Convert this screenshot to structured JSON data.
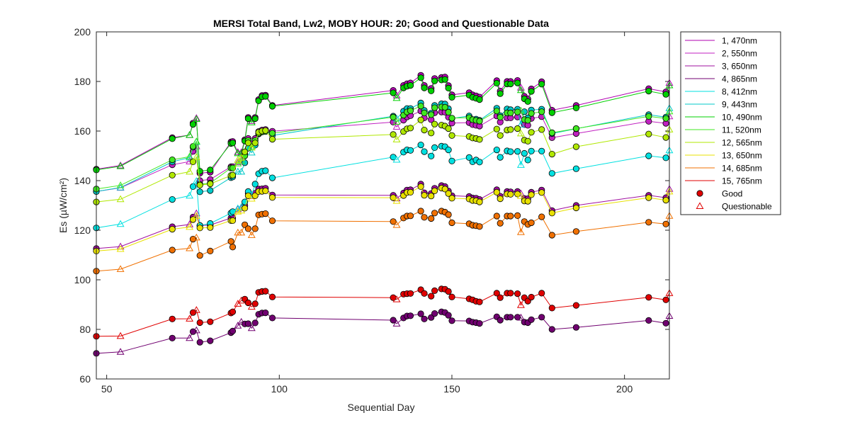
{
  "chart_data": {
    "type": "line",
    "title": "MERSI Total Band,  Lw2, MOBY HOUR: 20;  Good and Questionable Data",
    "xlabel": "Sequential Day",
    "ylabel": "Es (µW/cm²)",
    "xlim": [
      47,
      213
    ],
    "ylim": [
      60,
      200
    ],
    "xticks": [
      50,
      100,
      150,
      200
    ],
    "yticks": [
      60,
      80,
      100,
      120,
      140,
      160,
      180,
      200
    ],
    "grid": false,
    "legend_position": "outside-right",
    "x": [
      47,
      54,
      69,
      74,
      75,
      76,
      77,
      80,
      86,
      86.5,
      88,
      89,
      90,
      91,
      92,
      93,
      94,
      95,
      96,
      98,
      133,
      134,
      136,
      137,
      138,
      141,
      142,
      144,
      145,
      147,
      148,
      149,
      150,
      155,
      156,
      157,
      158,
      163,
      164,
      166,
      167,
      169,
      170,
      171,
      172,
      173,
      176,
      179,
      186,
      207,
      212,
      213
    ],
    "quality": [
      "G",
      "Q",
      "G",
      "Q",
      "G",
      "Q",
      "G",
      "G",
      "G",
      "G",
      "Q",
      "Q",
      "G",
      "G",
      "Q",
      "G",
      "G",
      "G",
      "G",
      "G",
      "G",
      "Q",
      "G",
      "G",
      "G",
      "G",
      "G",
      "G",
      "G",
      "G",
      "G",
      "G",
      "G",
      "G",
      "G",
      "G",
      "G",
      "G",
      "G",
      "G",
      "G",
      "G",
      "Q",
      "G",
      "G",
      "G",
      "G",
      "G",
      "G",
      "G",
      "G",
      "Q"
    ],
    "series": [
      {
        "name": "1, 470nm",
        "color": "#b000b0",
        "values": [
          144.6,
          146.1,
          157.3,
          158.4,
          163.2,
          165.2,
          143.0,
          143.4,
          155.6,
          155.8,
          151.5,
          151.4,
          156.5,
          165.5,
          164.0,
          165.5,
          172.7,
          174.3,
          174.5,
          170.3,
          176.4,
          174.3,
          178.4,
          179.1,
          179.4,
          182.5,
          178.4,
          177.2,
          181.2,
          181.6,
          181.8,
          178.3,
          174.6,
          175.5,
          174.6,
          174.2,
          173.7,
          180.3,
          176.1,
          180.0,
          180.0,
          180.4,
          177.5,
          174.0,
          172.9,
          177.0,
          179.9,
          168.4,
          170.3,
          177.1,
          175.8,
          179.4
        ]
      },
      {
        "name": "2, 550nm",
        "color": "#c020c0",
        "values": [
          135.6,
          137.1,
          146.4,
          147.7,
          151.8,
          153.8,
          140.0,
          140.5,
          145.6,
          145.6,
          147.4,
          148.3,
          150.6,
          157.0,
          154.6,
          157.0,
          159.8,
          160.4,
          160.6,
          159.9,
          163.6,
          161.7,
          164.4,
          165.7,
          166.2,
          168.1,
          165.3,
          164.6,
          167.4,
          167.7,
          167.6,
          165.6,
          163.2,
          163.4,
          162.6,
          162.3,
          162.0,
          166.1,
          163.6,
          165.3,
          165.3,
          165.7,
          166.2,
          162.6,
          162.3,
          165.1,
          165.8,
          157.3,
          159.0,
          163.9,
          163.1,
          165.9
        ]
      },
      {
        "name": "3, 650nm",
        "color": "#a010a0",
        "values": [
          112.6,
          113.4,
          121.4,
          122.3,
          125.3,
          126.8,
          121.9,
          122.1,
          124.9,
          124.9,
          128.5,
          128.9,
          129.9,
          134.9,
          133.7,
          134.9,
          136.6,
          136.7,
          136.9,
          134.2,
          134.1,
          132.8,
          135.0,
          136.2,
          136.3,
          138.6,
          135.1,
          134.8,
          136.9,
          138.0,
          137.6,
          135.8,
          133.9,
          133.6,
          133.0,
          132.9,
          132.4,
          136.3,
          133.7,
          135.6,
          135.5,
          135.6,
          134.8,
          132.8,
          132.7,
          135.3,
          136.2,
          127.9,
          130.0,
          134.1,
          133.1,
          136.6
        ]
      },
      {
        "name": "4, 865nm",
        "color": "#700070",
        "values": [
          70.3,
          70.9,
          76.5,
          76.5,
          79.1,
          79.6,
          74.8,
          75.4,
          78.7,
          79.3,
          81.5,
          83.0,
          82.2,
          82.3,
          80.5,
          82.6,
          86.1,
          86.6,
          86.7,
          84.6,
          83.7,
          82.3,
          84.6,
          85.4,
          85.5,
          86.3,
          84.2,
          84.8,
          86.4,
          87.1,
          86.8,
          85.7,
          83.5,
          83.4,
          82.9,
          82.7,
          82.4,
          85.1,
          83.7,
          84.9,
          84.9,
          84.9,
          84.7,
          82.9,
          82.7,
          83.9,
          84.9,
          80.0,
          80.8,
          83.6,
          82.5,
          85.4
        ]
      },
      {
        "name": "8, 412nm",
        "color": "#00e0e0",
        "values": [
          120.9,
          122.5,
          132.4,
          133.9,
          137.6,
          139.8,
          121.9,
          122.7,
          126.9,
          127.5,
          128.8,
          129.3,
          131.4,
          135.6,
          134.2,
          138.6,
          142.8,
          143.8,
          144.0,
          141.1,
          149.5,
          148.4,
          151.5,
          152.4,
          152.2,
          154.4,
          151.7,
          149.9,
          153.3,
          153.9,
          153.7,
          152.4,
          147.9,
          149.3,
          147.6,
          148.3,
          147.5,
          152.4,
          149.4,
          152.0,
          151.7,
          151.8,
          146.3,
          151.0,
          148.3,
          151.9,
          151.9,
          142.9,
          144.8,
          150.0,
          149.2,
          152.2
        ]
      },
      {
        "name": "9, 443nm",
        "color": "#00c8c8",
        "values": [
          135.6,
          137.2,
          147.6,
          149.3,
          153.5,
          155.6,
          135.5,
          136.0,
          141.2,
          141.5,
          143.6,
          143.6,
          147.2,
          153.1,
          151.3,
          154.3,
          158.8,
          159.9,
          160.0,
          158.2,
          166.0,
          165.0,
          168.0,
          169.1,
          169.1,
          171.3,
          168.3,
          167.2,
          170.3,
          171.0,
          170.9,
          169.0,
          165.1,
          166.1,
          164.6,
          164.8,
          164.3,
          169.2,
          166.2,
          168.9,
          168.6,
          168.8,
          162.6,
          167.8,
          165.3,
          168.5,
          168.8,
          159.0,
          160.9,
          166.6,
          165.6,
          169.2
        ]
      },
      {
        "name": "10, 490nm",
        "color": "#00d000",
        "values": [
          144.3,
          145.8,
          156.9,
          158.4,
          162.7,
          164.8,
          143.8,
          144.3,
          155.0,
          155.2,
          151.0,
          150.9,
          156.0,
          165.0,
          163.5,
          165.0,
          172.2,
          173.8,
          174.0,
          170.0,
          175.4,
          173.3,
          177.4,
          178.1,
          178.4,
          181.5,
          177.4,
          176.2,
          180.2,
          180.6,
          180.8,
          177.3,
          173.6,
          174.5,
          173.6,
          173.2,
          172.7,
          179.3,
          175.1,
          179.0,
          179.0,
          179.4,
          176.5,
          173.0,
          171.9,
          176.0,
          178.9,
          167.4,
          169.3,
          176.1,
          174.8,
          178.4
        ]
      },
      {
        "name": "11, 520nm",
        "color": "#40e820",
        "values": [
          136.6,
          138.1,
          148.4,
          149.7,
          153.8,
          155.8,
          138.5,
          139.0,
          145.1,
          145.1,
          146.9,
          147.8,
          150.0,
          156.2,
          153.8,
          156.2,
          159.0,
          159.6,
          159.8,
          159.1,
          165.6,
          163.7,
          166.4,
          167.7,
          168.2,
          170.1,
          167.3,
          166.6,
          169.4,
          169.7,
          169.6,
          167.6,
          165.2,
          165.4,
          164.6,
          164.3,
          164.0,
          168.1,
          165.6,
          167.3,
          167.3,
          167.7,
          168.2,
          164.6,
          164.3,
          167.1,
          167.8,
          159.3,
          161.0,
          165.9,
          165.1,
          167.9
        ]
      },
      {
        "name": "12, 565nm",
        "color": "#b0e800",
        "values": [
          131.4,
          132.5,
          142.2,
          143.6,
          147.6,
          149.5,
          138.2,
          138.7,
          142.1,
          142.2,
          148.3,
          149.2,
          151.6,
          155.2,
          153.3,
          155.2,
          159.5,
          160.0,
          160.2,
          156.7,
          158.6,
          156.6,
          159.8,
          160.9,
          161.2,
          164.5,
          160.4,
          159.2,
          162.8,
          162.4,
          162.0,
          161.0,
          158.2,
          157.8,
          157.2,
          157.0,
          156.6,
          160.8,
          158.2,
          160.4,
          160.6,
          161.0,
          159.0,
          156.3,
          155.9,
          159.5,
          160.6,
          150.7,
          153.7,
          158.8,
          157.4,
          160.6
        ]
      },
      {
        "name": "13, 650nm",
        "color": "#e8e000",
        "values": [
          111.6,
          112.4,
          120.4,
          121.3,
          124.3,
          125.8,
          120.9,
          121.1,
          123.9,
          123.9,
          127.5,
          127.9,
          128.9,
          133.9,
          132.7,
          133.9,
          135.6,
          135.7,
          135.9,
          133.2,
          133.1,
          131.8,
          134.0,
          135.2,
          135.3,
          137.6,
          134.1,
          133.8,
          135.9,
          137.0,
          136.6,
          134.8,
          132.9,
          132.6,
          132.0,
          131.9,
          131.4,
          135.3,
          132.7,
          134.6,
          134.5,
          134.6,
          133.8,
          131.8,
          131.7,
          134.3,
          135.2,
          126.9,
          129.0,
          133.1,
          132.1,
          135.6
        ]
      },
      {
        "name": "14, 685nm",
        "color": "#f07000",
        "values": [
          103.5,
          104.3,
          112.0,
          112.7,
          116.4,
          117.0,
          109.8,
          111.6,
          115.5,
          113.2,
          119.0,
          119.0,
          122.2,
          120.6,
          118.0,
          120.6,
          126.2,
          126.5,
          126.7,
          123.8,
          123.5,
          122.1,
          124.9,
          125.7,
          125.8,
          127.7,
          125.2,
          124.7,
          126.9,
          127.7,
          127.3,
          126.3,
          123.0,
          122.6,
          122.0,
          121.8,
          121.5,
          125.7,
          122.8,
          125.7,
          125.7,
          125.9,
          119.2,
          123.5,
          122.3,
          123.0,
          125.4,
          118.0,
          119.5,
          123.2,
          122.5,
          125.8
        ]
      },
      {
        "name": "15, 765nm",
        "color": "#e00000",
        "values": [
          77.2,
          77.3,
          84.2,
          84.3,
          86.8,
          87.8,
          82.7,
          83.1,
          86.6,
          87.1,
          90.3,
          91.6,
          92.2,
          90.7,
          89.1,
          90.3,
          94.9,
          95.3,
          95.4,
          93.1,
          92.8,
          92.1,
          94.2,
          94.4,
          94.5,
          96.0,
          94.5,
          93.4,
          95.6,
          96.3,
          96.2,
          95.3,
          93.1,
          92.3,
          91.9,
          91.3,
          91.1,
          94.6,
          92.8,
          94.6,
          94.6,
          94.4,
          89.8,
          92.8,
          91.4,
          93.0,
          94.6,
          88.6,
          89.7,
          92.9,
          91.9,
          94.6
        ]
      }
    ],
    "legend": {
      "good_label": "Good",
      "questionable_label": "Questionable"
    }
  }
}
